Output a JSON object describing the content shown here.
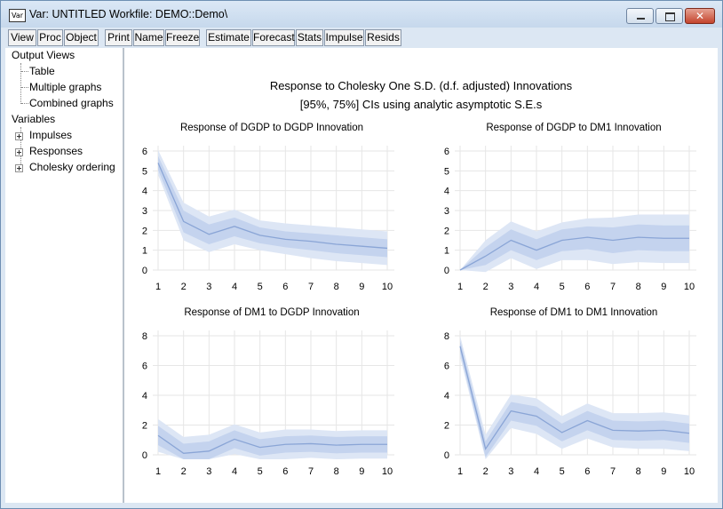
{
  "window": {
    "title": "Var: UNTITLED   Workfile: DEMO::Demo\\",
    "icon_label": "Var",
    "close_glyph": "✕"
  },
  "toolbar": [
    "View",
    "Proc",
    "Object",
    "Print",
    "Name",
    "Freeze",
    "Estimate",
    "Forecast",
    "Stats",
    "Impulse",
    "Resids"
  ],
  "sidebar": {
    "output_views": "Output Views",
    "output_items": [
      "Table",
      "Multiple graphs",
      "Combined graphs"
    ],
    "variables": "Variables",
    "variable_items": [
      "Impulses",
      "Responses",
      "Cholesky ordering"
    ]
  },
  "main": {
    "title": "Response to Cholesky One S.D. (d.f. adjusted) Innovations",
    "subtitle": "[95%, 75%] CIs using analytic asymptotic S.E.s"
  },
  "colors": {
    "line": "#8aa5d6",
    "band_outer": "#dde6f5",
    "band_inner": "#c4d3ee",
    "grid": "#e6e6e6"
  },
  "chart_data": [
    {
      "type": "area",
      "title": "Response of DGDP to DGDP Innovation",
      "x": [
        1,
        2,
        3,
        4,
        5,
        6,
        7,
        8,
        9,
        10
      ],
      "ylim": [
        0,
        6
      ],
      "yticks": [
        0,
        1,
        2,
        3,
        4,
        5,
        6
      ],
      "series": [
        {
          "values": [
            5.4,
            2.45,
            1.8,
            2.2,
            1.75,
            1.55,
            1.45,
            1.3,
            1.2,
            1.1
          ]
        }
      ],
      "band95": {
        "lower": [
          4.8,
          1.5,
          0.9,
          1.3,
          1.0,
          0.8,
          0.6,
          0.45,
          0.35,
          0.25
        ],
        "upper": [
          6.05,
          3.4,
          2.7,
          3.05,
          2.5,
          2.35,
          2.25,
          2.15,
          2.05,
          1.95
        ]
      },
      "band75": {
        "lower": [
          5.05,
          1.9,
          1.3,
          1.7,
          1.35,
          1.15,
          1.0,
          0.85,
          0.75,
          0.65
        ],
        "upper": [
          5.75,
          3.0,
          2.3,
          2.65,
          2.15,
          1.95,
          1.85,
          1.75,
          1.65,
          1.55
        ]
      },
      "grid": true
    },
    {
      "type": "area",
      "title": "Response of DGDP to DM1 Innovation",
      "x": [
        1,
        2,
        3,
        4,
        5,
        6,
        7,
        8,
        9,
        10
      ],
      "ylim": [
        0,
        6
      ],
      "yticks": [
        0,
        1,
        2,
        3,
        4,
        5,
        6
      ],
      "series": [
        {
          "values": [
            0,
            0.7,
            1.5,
            1.0,
            1.5,
            1.65,
            1.5,
            1.65,
            1.6,
            1.6
          ]
        }
      ],
      "band95": {
        "lower": [
          0,
          -0.1,
          0.6,
          0.05,
          0.5,
          0.5,
          0.3,
          0.4,
          0.35,
          0.35
        ],
        "upper": [
          0,
          1.5,
          2.45,
          1.95,
          2.4,
          2.6,
          2.65,
          2.8,
          2.8,
          2.8
        ]
      },
      "band75": {
        "lower": [
          0,
          0.25,
          1.0,
          0.5,
          0.95,
          1.05,
          0.85,
          1.0,
          0.95,
          0.95
        ],
        "upper": [
          0,
          1.15,
          2.05,
          1.55,
          2.05,
          2.2,
          2.15,
          2.3,
          2.25,
          2.25
        ]
      },
      "grid": true
    },
    {
      "type": "area",
      "title": "Response of DM1 to DGDP Innovation",
      "x": [
        1,
        2,
        3,
        4,
        5,
        6,
        7,
        8,
        9,
        10
      ],
      "ylim": [
        0,
        8
      ],
      "yticks": [
        0,
        2,
        4,
        6,
        8
      ],
      "series": [
        {
          "values": [
            1.3,
            0.1,
            0.25,
            1.05,
            0.5,
            0.7,
            0.75,
            0.65,
            0.7,
            0.7
          ]
        }
      ],
      "band95": {
        "lower": [
          0.2,
          -0.9,
          -0.8,
          0.05,
          -0.5,
          -0.3,
          -0.2,
          -0.3,
          -0.25,
          -0.25
        ],
        "upper": [
          2.4,
          1.2,
          1.35,
          2.05,
          1.5,
          1.7,
          1.7,
          1.6,
          1.65,
          1.65
        ]
      },
      "band75": {
        "lower": [
          0.65,
          -0.45,
          -0.35,
          0.45,
          -0.05,
          0.15,
          0.2,
          0.1,
          0.15,
          0.15
        ],
        "upper": [
          1.95,
          0.75,
          0.9,
          1.65,
          1.05,
          1.25,
          1.3,
          1.2,
          1.25,
          1.25
        ]
      },
      "grid": true
    },
    {
      "type": "area",
      "title": "Response of DM1 to DM1 Innovation",
      "x": [
        1,
        2,
        3,
        4,
        5,
        6,
        7,
        8,
        9,
        10
      ],
      "ylim": [
        0,
        8
      ],
      "yticks": [
        0,
        2,
        4,
        6,
        8
      ],
      "series": [
        {
          "values": [
            7.3,
            0.4,
            2.95,
            2.6,
            1.5,
            2.3,
            1.65,
            1.6,
            1.65,
            1.45
          ]
        }
      ],
      "band95": {
        "lower": [
          6.6,
          -0.6,
          1.8,
          1.4,
          0.4,
          1.1,
          0.5,
          0.4,
          0.4,
          0.25
        ],
        "upper": [
          8.0,
          1.35,
          4.05,
          3.8,
          2.6,
          3.45,
          2.8,
          2.8,
          2.85,
          2.65
        ]
      },
      "band75": {
        "lower": [
          6.9,
          -0.15,
          2.3,
          1.95,
          0.9,
          1.65,
          1.0,
          0.95,
          1.0,
          0.8
        ],
        "upper": [
          7.7,
          0.9,
          3.55,
          3.25,
          2.1,
          2.95,
          2.3,
          2.25,
          2.3,
          2.1
        ]
      },
      "grid": true
    }
  ]
}
